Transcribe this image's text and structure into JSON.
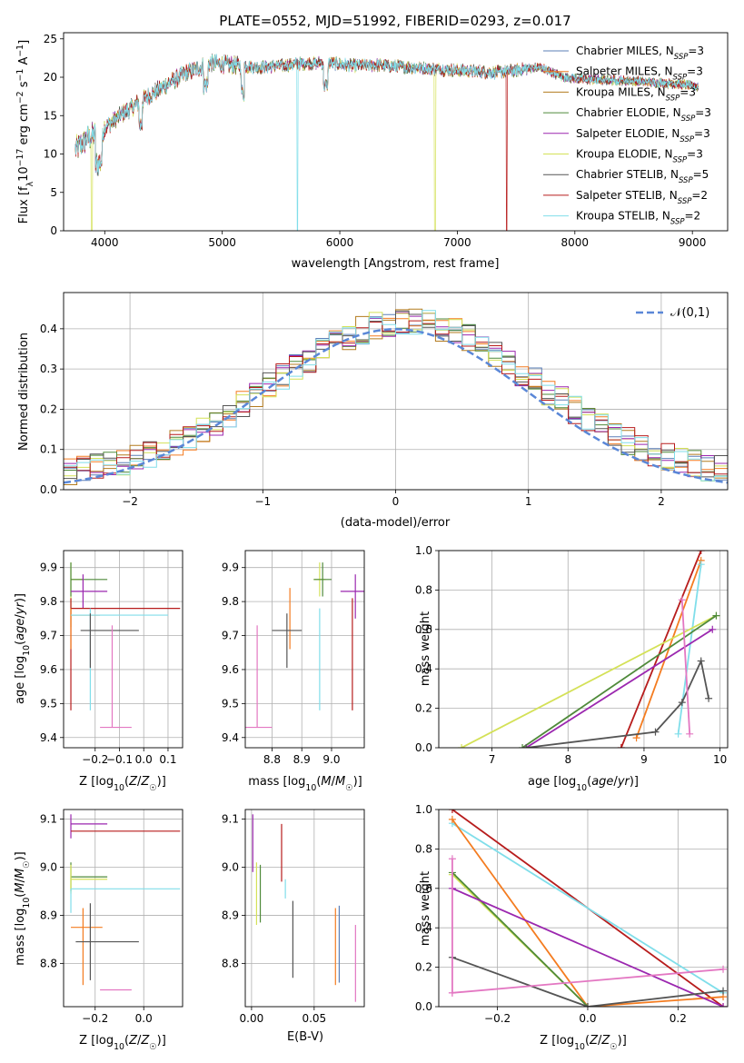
{
  "chart_data": [
    {
      "panel": "spectrum",
      "type": "line",
      "title": "PLATE=0552, MJD=51992, FIBERID=0293, z=0.017",
      "xlabel": "wavelength [Angstrom, rest frame]",
      "ylabel": "Flux [f_λ 10^-17 erg cm^-2 s^-1 A^-1]",
      "xlim": [
        3650,
        9300
      ],
      "ylim": [
        0,
        25.8
      ],
      "xticks": [
        4000,
        5000,
        6000,
        7000,
        8000,
        9000
      ],
      "yticks": [
        0,
        5,
        10,
        15,
        20,
        25
      ],
      "legend_position": "top-right",
      "grid": false,
      "continuum": {
        "x": [
          3750,
          3850,
          3950,
          4050,
          4150,
          4300,
          4500,
          4700,
          4900,
          5100,
          5300,
          5500,
          5700,
          5900,
          6100,
          6300,
          6500,
          6700,
          6900,
          7100,
          7300,
          7500,
          7700,
          7900,
          8100,
          8300,
          8500,
          8700,
          8900,
          9050
        ],
        "y": [
          10.5,
          12.0,
          12.8,
          14.0,
          15.2,
          16.8,
          18.8,
          20.6,
          21.8,
          21.6,
          21.3,
          21.5,
          21.8,
          21.9,
          21.5,
          21.6,
          21.4,
          21.2,
          21.0,
          20.8,
          20.6,
          20.9,
          21.3,
          20.0,
          19.7,
          19.6,
          19.5,
          19.3,
          19.1,
          18.8
        ]
      },
      "drops": [
        {
          "x": 3890,
          "series": "Kroupa ELODIE"
        },
        {
          "x": 5640,
          "series": "Kroupa STELIB"
        },
        {
          "x": 6810,
          "series": "Kroupa ELODIE"
        },
        {
          "x": 7420,
          "series": "Salpeter STELIB"
        }
      ],
      "series": [
        {
          "name": "Chabrier MILES, N_SSP=3",
          "color": "#5b7fb7"
        },
        {
          "name": "Salpeter MILES, N_SSP=3",
          "color": "#f47c20"
        },
        {
          "name": "Kroupa MILES, N_SSP=3",
          "color": "#b37b1f"
        },
        {
          "name": "Chabrier ELODIE, N_SSP=3",
          "color": "#4f8a3a"
        },
        {
          "name": "Salpeter ELODIE, N_SSP=3",
          "color": "#9b27af"
        },
        {
          "name": "Kroupa ELODIE, N_SSP=3",
          "color": "#d4e157"
        },
        {
          "name": "Chabrier STELIB, N_SSP=5",
          "color": "#555555"
        },
        {
          "name": "Salpeter STELIB, N_SSP=2",
          "color": "#b71c1c"
        },
        {
          "name": "Kroupa STELIB, N_SSP=2",
          "color": "#80deea"
        }
      ]
    },
    {
      "panel": "residual-histogram",
      "type": "line",
      "xlabel": "(data-model)/error",
      "ylabel": "Normed distribution",
      "xlim": [
        -2.5,
        2.5
      ],
      "ylim": [
        0,
        0.49
      ],
      "xticks": [
        -2,
        -1,
        0,
        1,
        2
      ],
      "yticks": [
        0.0,
        0.1,
        0.2,
        0.3,
        0.4
      ],
      "grid": true,
      "legend_position": "top-right",
      "gaussian_label": "𝒩(0,1)",
      "gaussian_color": "#5a87d7",
      "bin_width": 0.1
    },
    {
      "panel": "age-vs-metallicity",
      "type": "scatter",
      "xlabel": "Z [log10(Z/Z☉)]",
      "ylabel": "age  [log10(age/yr)]",
      "xlim": [
        -0.33,
        0.16
      ],
      "ylim": [
        9.37,
        9.95
      ],
      "xticks": [
        -0.2,
        -0.1,
        0.0,
        0.1
      ],
      "yticks": [
        9.4,
        9.5,
        9.6,
        9.7,
        9.8,
        9.9
      ],
      "tick_labels_x": [
        "−0.2",
        "0.0"
      ],
      "grid": true,
      "points": [
        {
          "color": "#d4e157",
          "x": -0.3,
          "xerr": [
            0.0,
            0.05
          ],
          "y": 9.865,
          "yerr": [
            0.14,
            0.05
          ]
        },
        {
          "color": "#4f8a3a",
          "x": -0.3,
          "xerr": [
            0.0,
            0.15
          ],
          "y": 9.865,
          "yerr": [
            0.05,
            0.05
          ]
        },
        {
          "color": "#9b27af",
          "x": -0.25,
          "xerr": [
            0.05,
            0.1
          ],
          "y": 9.83,
          "yerr": [
            0.05,
            0.05
          ]
        },
        {
          "color": "#b71c1c",
          "x": -0.3,
          "xerr": [
            0.0,
            0.45
          ],
          "y": 9.78,
          "yerr": [
            0.3,
            0.03
          ]
        },
        {
          "color": "#f47c20",
          "x": -0.3,
          "xerr": [
            0.0,
            0.12
          ],
          "y": 9.76,
          "yerr": [
            0.1,
            0.02
          ]
        },
        {
          "color": "#80deea",
          "x": -0.22,
          "xerr": [
            0.08,
            0.32
          ],
          "y": 9.76,
          "yerr": [
            0.28,
            0.02
          ]
        },
        {
          "color": "#555555",
          "x": -0.22,
          "xerr": [
            0.04,
            0.2
          ],
          "y": 9.715,
          "yerr": [
            0.11,
            0.05
          ]
        },
        {
          "color": "#e377c2",
          "x": -0.13,
          "xerr": [
            0.05,
            0.08
          ],
          "y": 9.43,
          "yerr": [
            0.0,
            0.3
          ]
        }
      ]
    },
    {
      "panel": "age-vs-mass",
      "type": "scatter",
      "xlabel": "mass [log10(M/M☉)]",
      "xlim": [
        8.71,
        9.11
      ],
      "ylim": [
        9.37,
        9.95
      ],
      "xticks": [
        8.8,
        8.9,
        9.0
      ],
      "yticks": [
        9.4,
        9.5,
        9.6,
        9.7,
        9.8,
        9.9
      ],
      "grid": true,
      "points": [
        {
          "color": "#d4e157",
          "x": 8.96,
          "xerr": [
            0.02,
            0.02
          ],
          "y": 9.865,
          "yerr": [
            0.05,
            0.05
          ]
        },
        {
          "color": "#4f8a3a",
          "x": 8.97,
          "xerr": [
            0.03,
            0.03
          ],
          "y": 9.865,
          "yerr": [
            0.05,
            0.05
          ]
        },
        {
          "color": "#9b27af",
          "x": 9.08,
          "xerr": [
            0.05,
            0.05
          ],
          "y": 9.83,
          "yerr": [
            0.08,
            0.05
          ]
        },
        {
          "color": "#b71c1c",
          "x": 9.07,
          "xerr": [
            0.0,
            0.0
          ],
          "y": 9.78,
          "yerr": [
            0.3,
            0.03
          ]
        },
        {
          "color": "#f47c20",
          "x": 8.86,
          "xerr": [
            0.0,
            0.0
          ],
          "y": 9.76,
          "yerr": [
            0.1,
            0.08
          ]
        },
        {
          "color": "#80deea",
          "x": 8.96,
          "xerr": [
            0.0,
            0.0
          ],
          "y": 9.76,
          "yerr": [
            0.28,
            0.02
          ]
        },
        {
          "color": "#555555",
          "x": 8.85,
          "xerr": [
            0.05,
            0.05
          ],
          "y": 9.715,
          "yerr": [
            0.11,
            0.05
          ]
        },
        {
          "color": "#e377c2",
          "x": 8.75,
          "xerr": [
            0.05,
            0.05
          ],
          "y": 9.43,
          "yerr": [
            0.0,
            0.3
          ]
        }
      ]
    },
    {
      "panel": "mass-weight-vs-age",
      "type": "line",
      "xlabel": "age  [log10(age/yr)]",
      "ylabel": "mass weight",
      "xlim": [
        6.3,
        10.1
      ],
      "ylim": [
        0,
        1.0
      ],
      "xticks": [
        7,
        8,
        9,
        10
      ],
      "yticks": [
        0.0,
        0.2,
        0.4,
        0.6,
        0.8,
        1.0
      ],
      "grid": true,
      "series": [
        {
          "color": "#b71c1c",
          "x": [
            8.7,
            9.75
          ],
          "y": [
            0.0,
            1.0
          ]
        },
        {
          "color": "#f47c20",
          "x": [
            8.9,
            9.75
          ],
          "y": [
            0.05,
            0.95
          ]
        },
        {
          "color": "#80deea",
          "x": [
            9.45,
            9.75
          ],
          "y": [
            0.07,
            0.93
          ]
        },
        {
          "color": "#d4e157",
          "x": [
            6.6,
            9.95
          ],
          "y": [
            0.0,
            0.67
          ]
        },
        {
          "color": "#4f8a3a",
          "x": [
            7.4,
            9.95
          ],
          "y": [
            0.0,
            0.67
          ]
        },
        {
          "color": "#9b27af",
          "x": [
            7.45,
            9.9
          ],
          "y": [
            0.0,
            0.6
          ]
        },
        {
          "color": "#555555",
          "x": [
            7.45,
            9.15,
            9.5,
            9.75,
            9.85
          ],
          "y": [
            0.0,
            0.08,
            0.23,
            0.44,
            0.25
          ]
        },
        {
          "color": "#e377c2",
          "x": [
            9.5,
            9.6
          ],
          "y": [
            0.75,
            0.07
          ]
        }
      ]
    },
    {
      "panel": "mass-vs-metallicity",
      "type": "scatter",
      "xlabel": "Z [log10(Z/Z☉)]",
      "ylabel": "mass [log10(M/M☉)]",
      "xlim": [
        -0.33,
        0.16
      ],
      "ylim": [
        8.71,
        9.12
      ],
      "xticks": [
        -0.2,
        0.0
      ],
      "yticks": [
        8.8,
        8.9,
        9.0,
        9.1
      ],
      "grid": true,
      "points": [
        {
          "color": "#9b27af",
          "x": -0.3,
          "xerr": [
            0.0,
            0.15
          ],
          "y": 9.09,
          "yerr": [
            0.03,
            0.02
          ]
        },
        {
          "color": "#b71c1c",
          "x": -0.3,
          "xerr": [
            0.0,
            0.45
          ],
          "y": 9.075,
          "yerr": [
            0.0,
            0.0
          ]
        },
        {
          "color": "#4f8a3a",
          "x": -0.3,
          "xerr": [
            0.0,
            0.15
          ],
          "y": 8.98,
          "yerr": [
            0.03,
            0.03
          ]
        },
        {
          "color": "#d4e157",
          "x": -0.3,
          "xerr": [
            0.0,
            0.15
          ],
          "y": 8.975,
          "yerr": [
            0.03,
            0.03
          ]
        },
        {
          "color": "#80deea",
          "x": -0.3,
          "xerr": [
            0.0,
            0.45
          ],
          "y": 8.955,
          "yerr": [
            0.05,
            0.0
          ]
        },
        {
          "color": "#f47c20",
          "x": -0.25,
          "xerr": [
            0.05,
            0.08
          ],
          "y": 8.875,
          "yerr": [
            0.12,
            0.04
          ]
        },
        {
          "color": "#555555",
          "x": -0.22,
          "xerr": [
            0.06,
            0.2
          ],
          "y": 8.845,
          "yerr": [
            0.08,
            0.08
          ]
        },
        {
          "color": "#e377c2",
          "x": -0.13,
          "xerr": [
            0.05,
            0.08
          ],
          "y": 8.745,
          "yerr": [
            0.0,
            0.0
          ]
        }
      ]
    },
    {
      "panel": "mass-vs-extinction",
      "type": "scatter",
      "xlabel": "E(B-V)",
      "xlim": [
        -0.005,
        0.09
      ],
      "ylim": [
        8.71,
        9.12
      ],
      "xticks": [
        0.0,
        0.05
      ],
      "yticks": [
        8.8,
        8.9,
        9.0,
        9.1
      ],
      "grid": true,
      "points": [
        {
          "color": "#9b27af",
          "x": 0.001,
          "y": 9.05,
          "yerr": [
            0.06,
            0.06
          ]
        },
        {
          "color": "#d4e157",
          "x": 0.004,
          "y": 8.97,
          "yerr": [
            0.09,
            0.04
          ]
        },
        {
          "color": "#4f8a3a",
          "x": 0.007,
          "y": 8.945,
          "yerr": [
            0.06,
            0.06
          ]
        },
        {
          "color": "#b71c1c",
          "x": 0.024,
          "y": 9.03,
          "yerr": [
            0.06,
            0.06
          ]
        },
        {
          "color": "#80deea",
          "x": 0.027,
          "y": 8.955,
          "yerr": [
            0.02,
            0.02
          ]
        },
        {
          "color": "#555555",
          "x": 0.033,
          "y": 8.85,
          "yerr": [
            0.08,
            0.08
          ]
        },
        {
          "color": "#f47c20",
          "x": 0.067,
          "y": 8.835,
          "yerr": [
            0.08,
            0.08
          ]
        },
        {
          "color": "#5b7fb7",
          "x": 0.07,
          "y": 8.84,
          "yerr": [
            0.08,
            0.08
          ]
        },
        {
          "color": "#e377c2",
          "x": 0.083,
          "y": 8.8,
          "yerr": [
            0.08,
            0.08
          ]
        }
      ]
    },
    {
      "panel": "mass-weight-vs-metallicity",
      "type": "line",
      "xlabel": "Z [log10(Z/Z☉)]",
      "ylabel": "mass weight",
      "xlim": [
        -0.33,
        0.31
      ],
      "ylim": [
        0,
        1.0
      ],
      "xticks": [
        -0.2,
        0.0,
        0.2
      ],
      "yticks": [
        0.0,
        0.2,
        0.4,
        0.6,
        0.8,
        1.0
      ],
      "grid": true,
      "series": [
        {
          "color": "#b71c1c",
          "x": [
            -0.3,
            0.3
          ],
          "y": [
            1.0,
            0.0
          ]
        },
        {
          "color": "#80deea",
          "x": [
            -0.3,
            0.3
          ],
          "y": [
            0.93,
            0.07
          ]
        },
        {
          "color": "#f47c20",
          "x": [
            -0.3,
            0.0,
            0.3
          ],
          "y": [
            0.95,
            0.0,
            0.05
          ]
        },
        {
          "color": "#d4e157",
          "x": [
            -0.3,
            0.0
          ],
          "y": [
            0.67,
            0.0
          ]
        },
        {
          "color": "#4f8a3a",
          "x": [
            -0.3,
            0.0
          ],
          "y": [
            0.68,
            0.0
          ]
        },
        {
          "color": "#9b27af",
          "x": [
            -0.3,
            0.3
          ],
          "y": [
            0.6,
            0.0
          ]
        },
        {
          "color": "#555555",
          "x": [
            -0.3,
            0.0,
            0.3
          ],
          "y": [
            0.25,
            0.0,
            0.08
          ]
        },
        {
          "color": "#e377c2",
          "x": [
            -0.3,
            0.3
          ],
          "y": [
            0.07,
            0.19
          ]
        },
        {
          "color": "#e377c2",
          "x": [
            -0.3,
            -0.3
          ],
          "y": [
            0.07,
            0.75
          ]
        }
      ]
    }
  ],
  "text": {
    "title": "PLATE=0552, MJD=51992, FIBERID=0293, z=0.017",
    "legend": [
      "Chabrier MILES, N",
      "Salpeter MILES, N",
      "Kroupa MILES, N",
      "Chabrier ELODIE, N",
      "Salpeter ELODIE, N",
      "Kroupa ELODIE, N",
      "Chabrier STELIB, N",
      "Salpeter STELIB, N",
      "Kroupa STELIB, N"
    ],
    "legend_sub": "SSP",
    "legend_counts": [
      "=3",
      "=3",
      "=3",
      "=3",
      "=3",
      "=3",
      "=5",
      "=2",
      "=2"
    ]
  }
}
